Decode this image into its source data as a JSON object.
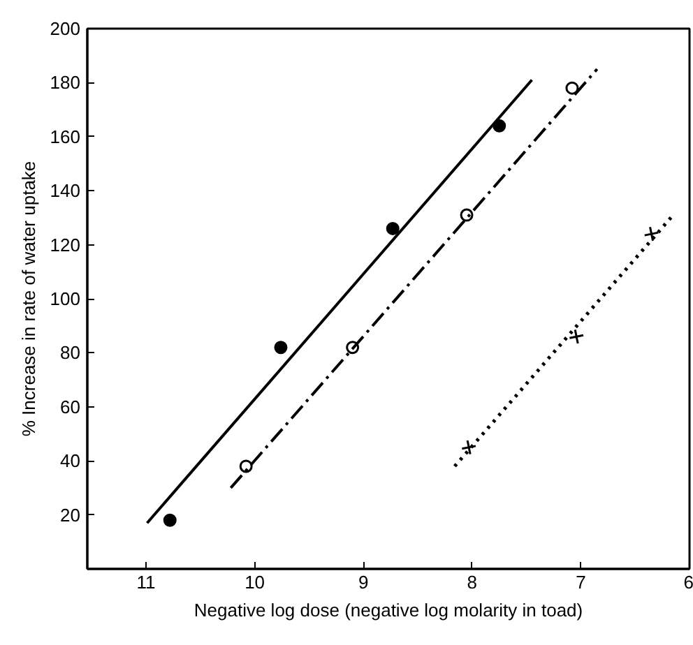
{
  "chart_data": {
    "type": "scatter",
    "xlabel": "Negative log dose (negative log molarity in toad)",
    "ylabel": "% Increase in rate of water uptake",
    "xlim": [
      11.54,
      6
    ],
    "xticks": [
      11,
      10,
      9,
      8,
      7,
      6
    ],
    "ylim": [
      0,
      200
    ],
    "yticks": [
      20,
      40,
      60,
      80,
      100,
      120,
      140,
      160,
      180,
      200
    ],
    "grid": false,
    "series": [
      {
        "marker": "circle",
        "color": "#000000",
        "x": [
          10.78,
          9.76,
          8.73,
          7.75
        ],
        "values": [
          18,
          82,
          126,
          164
        ]
      },
      {
        "type": "line",
        "line_style": "solid",
        "color": "#000000",
        "x": [
          10.99,
          7.45
        ],
        "values": [
          17,
          181
        ]
      },
      {
        "marker": "circle",
        "color": "#ffffff",
        "x": [
          10.08,
          9.1,
          8.05,
          7.08
        ],
        "values": [
          38,
          82,
          131,
          178
        ]
      },
      {
        "type": "line",
        "line_style": "dashdot",
        "color": "#000000",
        "x": [
          10.22,
          6.85
        ],
        "values": [
          30,
          185
        ]
      },
      {
        "marker": "cross",
        "color": "#000000",
        "x": [
          8.03,
          7.04,
          6.35
        ],
        "values": [
          45,
          86,
          124
        ]
      },
      {
        "type": "line",
        "line_style": "dotted",
        "color": "#000000",
        "x": [
          8.16,
          6.15
        ],
        "values": [
          38,
          131
        ]
      }
    ]
  }
}
